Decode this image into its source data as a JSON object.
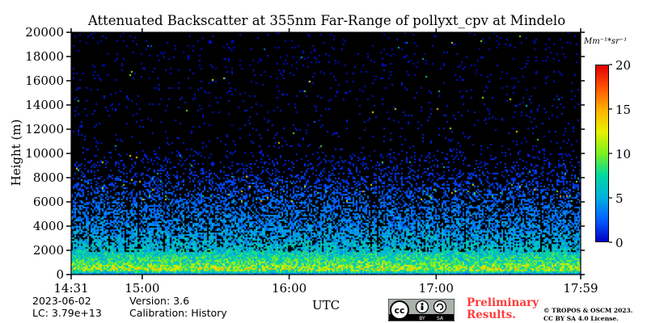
{
  "colors": {
    "background": "#000000",
    "colormap": [
      "#0000c8",
      "#0060ff",
      "#00b0e0",
      "#00d8a0",
      "#7cf020",
      "#e8f000",
      "#ffb000",
      "#ff5000",
      "#e00000"
    ],
    "prelim_color": "#ff3b3b"
  },
  "chart_data": {
    "type": "heatmap",
    "title": "Attenuated Backscatter at 355nm Far-Range of pollyxt_cpv at Mindelo",
    "xlabel": "UTC",
    "ylabel": "Height (m)",
    "x_ticks": [
      "14:31",
      "15:00",
      "16:00",
      "17:00",
      "17:59"
    ],
    "y_ticks": [
      0,
      2000,
      4000,
      6000,
      8000,
      10000,
      12000,
      14000,
      16000,
      18000,
      20000
    ],
    "ylim": [
      0,
      20000
    ],
    "xlim": [
      "14:31",
      "17:59"
    ],
    "colorbar": {
      "ticks": [
        0,
        5,
        10,
        15,
        20
      ],
      "range": [
        0,
        20
      ],
      "unit": "Mm⁻¹*sr⁻¹"
    },
    "profile": [
      {
        "height_m": 0,
        "value": 2.0
      },
      {
        "height_m": 500,
        "value": 11.0
      },
      {
        "height_m": 1000,
        "value": 8.5
      },
      {
        "height_m": 2000,
        "value": 6.0
      },
      {
        "height_m": 3000,
        "value": 4.8
      },
      {
        "height_m": 4000,
        "value": 3.8
      },
      {
        "height_m": 6000,
        "value": 2.8
      },
      {
        "height_m": 8000,
        "value": 1.5
      },
      {
        "height_m": 10000,
        "value": 0.8
      },
      {
        "height_m": 20000,
        "value": 0.3
      }
    ]
  },
  "meta": {
    "date": "2023-06-02",
    "version": "Version: 3.6",
    "lc": "LC: 3.79e+13",
    "calibration": "Calibration: History",
    "preliminary": "Preliminary",
    "results": "Results.",
    "copyright_1": "© TROPOS & OSCM 2023.",
    "copyright_2": "CC BY SA 4.0 License.",
    "cc_by": "BY",
    "cc_sa": "SA"
  }
}
